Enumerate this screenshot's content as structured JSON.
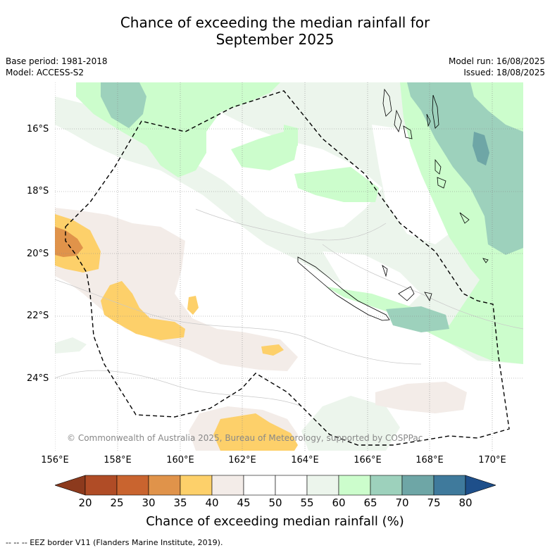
{
  "title_line1": "Chance of exceeding the median rainfall for",
  "title_line2": "September 2025",
  "base_period": "Base period: 1981-2018",
  "model": "Model: ACCESS-S2",
  "model_run": "Model run: 16/08/2025",
  "issued": "Issued: 18/08/2025",
  "copyright": "© Commonwealth of Australia 2025, Bureau of Meteorology, supported by COSPPac",
  "lat_labels": [
    "16°S",
    "18°S",
    "20°S",
    "22°S",
    "24°S"
  ],
  "lon_labels": [
    "156°E",
    "158°E",
    "160°E",
    "162°E",
    "164°E",
    "166°E",
    "168°E",
    "170°E"
  ],
  "colorbar": {
    "ticks": [
      "20",
      "25",
      "30",
      "35",
      "40",
      "45",
      "50",
      "55",
      "60",
      "65",
      "70",
      "75",
      "80"
    ],
    "colors": [
      "#b04c26",
      "#c9642f",
      "#e0934a",
      "#fdd06a",
      "#f3ece8",
      "#ffffff",
      "#ffffff",
      "#ecf5ec",
      "#ccfdcc",
      "#9dd1bc",
      "#6ea6a6",
      "#3f7a9c"
    ],
    "under_color": "#8c3a1d",
    "over_color": "#1e4f8a",
    "title": "Chance of exceeding median rainfall (%)"
  },
  "footer": "--  --  -- EEZ border V11 (Flanders Marine Institute, 2019)."
}
